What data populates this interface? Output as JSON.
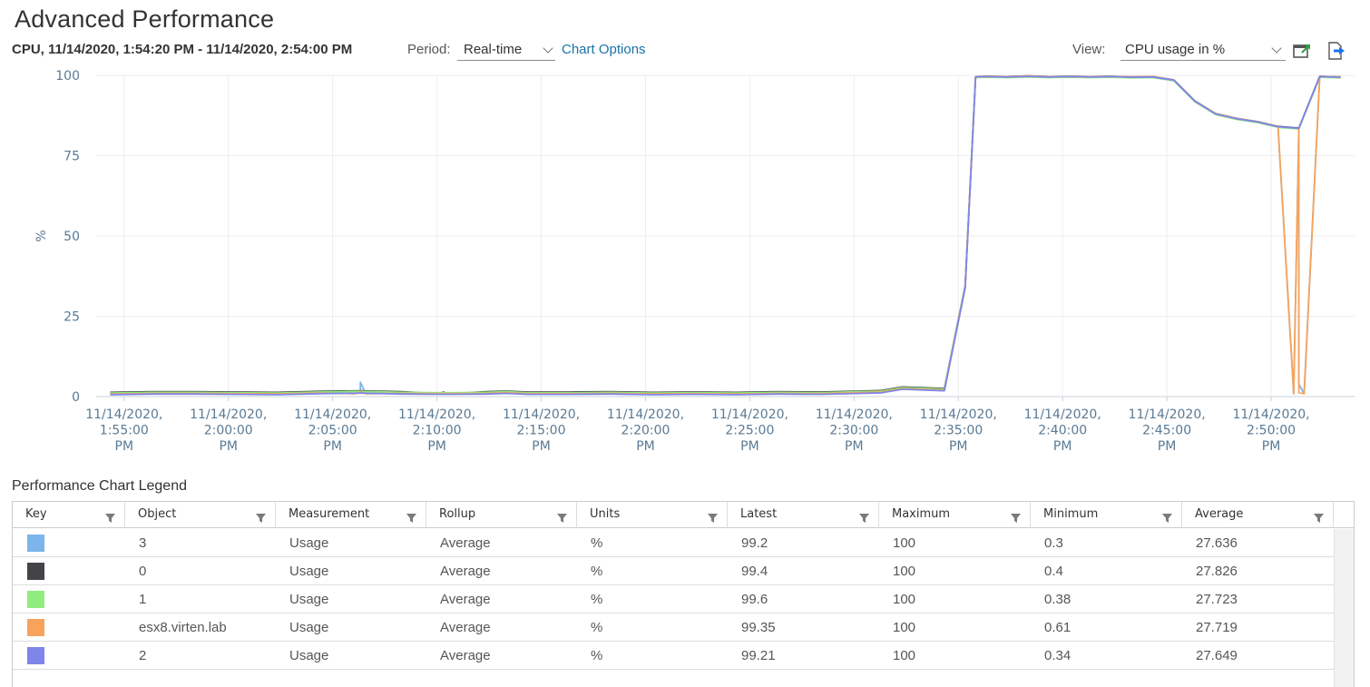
{
  "page": {
    "title": "Advanced Performance"
  },
  "toolbar": {
    "range": "CPU, 11/14/2020, 1:54:20 PM - 11/14/2020, 2:54:00 PM",
    "period_label": "Period:",
    "period_value": "Real-time",
    "chart_options": "Chart Options",
    "view_label": "View:",
    "view_value": "CPU usage in %",
    "popout_icon": "popout-chart-icon",
    "export_icon": "export-icon"
  },
  "chart_data": {
    "type": "line",
    "ylabel": "%",
    "ylim": [
      0,
      100
    ],
    "yticks": [
      "0",
      "25",
      "50",
      "75",
      "100"
    ],
    "xticks": [
      [
        "11/14/2020,",
        "1:55:00",
        "PM"
      ],
      [
        "11/14/2020,",
        "2:00:00",
        "PM"
      ],
      [
        "11/14/2020,",
        "2:05:00",
        "PM"
      ],
      [
        "11/14/2020,",
        "2:10:00",
        "PM"
      ],
      [
        "11/14/2020,",
        "2:15:00",
        "PM"
      ],
      [
        "11/14/2020,",
        "2:20:00",
        "PM"
      ],
      [
        "11/14/2020,",
        "2:25:00",
        "PM"
      ],
      [
        "11/14/2020,",
        "2:30:00",
        "PM"
      ],
      [
        "11/14/2020,",
        "2:35:00",
        "PM"
      ],
      [
        "11/14/2020,",
        "2:40:00",
        "PM"
      ],
      [
        "11/14/2020,",
        "2:45:00",
        "PM"
      ],
      [
        "11/14/2020,",
        "2:50:00",
        "PM"
      ]
    ],
    "grid": true,
    "x_minutes": [
      0,
      2,
      4,
      6,
      8,
      10,
      12,
      14,
      16,
      18,
      19,
      20,
      22,
      24,
      26,
      28,
      30,
      32,
      34,
      36,
      37,
      38,
      40,
      41,
      41.5,
      42,
      43,
      44,
      45,
      46,
      47,
      48,
      49,
      50,
      51,
      52,
      53,
      54,
      55,
      56,
      57,
      58,
      59
    ],
    "base": [
      0.8,
      1.0,
      1.0,
      0.9,
      0.8,
      1.1,
      1.3,
      1.0,
      0.9,
      1.0,
      1.2,
      0.9,
      0.9,
      1.0,
      0.8,
      0.9,
      0.8,
      1.0,
      0.9,
      1.2,
      1.4,
      2.5,
      2.0,
      34,
      99.5,
      99.6,
      99.5,
      99.7,
      99.5,
      99.6,
      99.5,
      99.6,
      99.4,
      99.5,
      98.5,
      92,
      88,
      86.5,
      85.5,
      84,
      83.5,
      99.6,
      99.4
    ],
    "series": [
      {
        "name": "3",
        "color": "#7cb5ec",
        "offset": [
          0.2,
          0.1
        ],
        "spikes": [
          [
            12,
            4.5
          ],
          [
            57,
            3.8
          ]
        ]
      },
      {
        "name": "0",
        "color": "#434348",
        "offset": [
          0.5,
          0.1
        ],
        "spikes": [
          [
            16,
            0.8
          ]
        ]
      },
      {
        "name": "1",
        "color": "#90ed7d",
        "offset": [
          0.3,
          -0.2
        ],
        "spikes": []
      },
      {
        "name": "esx8.virten.lab",
        "color": "#f7a35c",
        "offset": [
          0.0,
          0.1
        ],
        "spikes": [
          [
            12,
            1.5
          ],
          [
            57,
            1.2
          ]
        ]
      },
      {
        "name": "2",
        "color": "#8085e9",
        "offset": [
          -0.2,
          0.0
        ],
        "spikes": []
      }
    ]
  },
  "legend": {
    "title": "Performance Chart Legend",
    "columns": [
      "Key",
      "Object",
      "Measurement",
      "Rollup",
      "Units",
      "Latest",
      "Maximum",
      "Minimum",
      "Average"
    ],
    "filter_icon": "filter-icon",
    "rows": [
      {
        "color": "#7cb5ec",
        "object": "3",
        "measurement": "Usage",
        "rollup": "Average",
        "units": "%",
        "latest": "99.2",
        "maximum": "100",
        "minimum": "0.3",
        "average": "27.636"
      },
      {
        "color": "#434348",
        "object": "0",
        "measurement": "Usage",
        "rollup": "Average",
        "units": "%",
        "latest": "99.4",
        "maximum": "100",
        "minimum": "0.4",
        "average": "27.826"
      },
      {
        "color": "#90ed7d",
        "object": "1",
        "measurement": "Usage",
        "rollup": "Average",
        "units": "%",
        "latest": "99.6",
        "maximum": "100",
        "minimum": "0.38",
        "average": "27.723"
      },
      {
        "color": "#f7a35c",
        "object": "esx8.virten.lab",
        "measurement": "Usage",
        "rollup": "Average",
        "units": "%",
        "latest": "99.35",
        "maximum": "100",
        "minimum": "0.61",
        "average": "27.719"
      },
      {
        "color": "#8085e9",
        "object": "2",
        "measurement": "Usage",
        "rollup": "Average",
        "units": "%",
        "latest": "99.21",
        "maximum": "100",
        "minimum": "0.34",
        "average": "27.649"
      }
    ]
  }
}
